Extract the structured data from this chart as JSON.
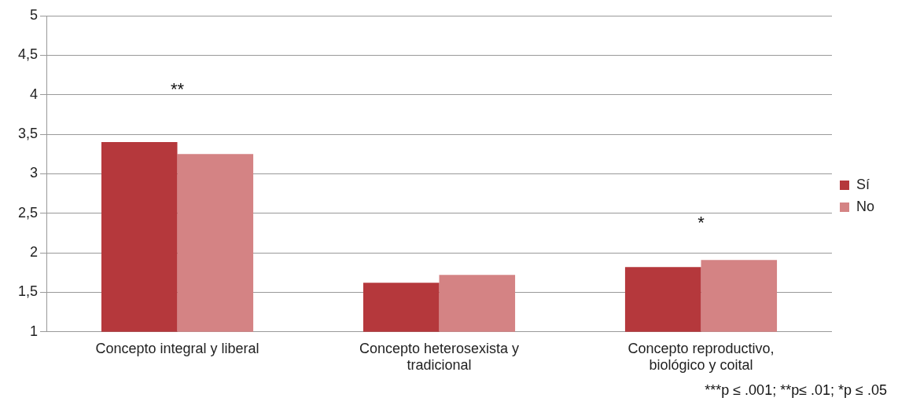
{
  "chart_data": {
    "type": "bar",
    "categories": [
      "Concepto integral y liberal",
      "Concepto heterosexista y tradicional",
      "Concepto reproductivo, biológico y coital"
    ],
    "series": [
      {
        "name": "Sí",
        "color": "#b5383c",
        "values": [
          3.4,
          1.62,
          1.82
        ]
      },
      {
        "name": "No",
        "color": "#d48384",
        "values": [
          3.25,
          1.72,
          1.91
        ]
      }
    ],
    "ylim": [
      1,
      5
    ],
    "yticks": [
      1,
      {
        "value": 1.5,
        "label": "1,5"
      },
      2,
      {
        "value": 2.5,
        "label": "2,5"
      },
      3,
      {
        "value": 3.5,
        "label": "3,5"
      },
      4,
      {
        "value": 4.5,
        "label": "4,5"
      },
      5
    ],
    "grid": "y",
    "legend": "right",
    "annotations": [
      "**",
      "*",
      "***p ≤ .001; **p≤ .01; *p ≤ .05"
    ]
  }
}
